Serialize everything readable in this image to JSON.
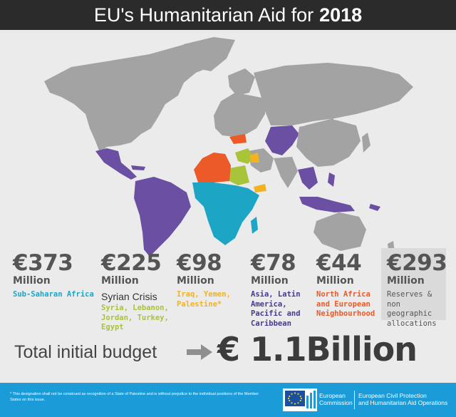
{
  "header": {
    "title_prefix": "EU's Humanitarian Aid for",
    "title_year": "2018"
  },
  "colors": {
    "sub_saharan": "#1da5c6",
    "syria": "#a8c43a",
    "iraq_yemen": "#f2b31f",
    "asia_latam": "#6a4fa2",
    "north_africa": "#ec5a28",
    "land": "#a3a3a3",
    "background": "#ebebeb"
  },
  "regions": [
    {
      "amount": "€373",
      "unit": "Million",
      "label": "Sub-Saharan Africa",
      "color": "#1da5c6"
    },
    {
      "amount": "€225",
      "unit": "Million",
      "crisis": "Syrian Crisis",
      "label": "Syria, Lebanon, Jordan, Turkey, Egypt",
      "color": "#a8c43a"
    },
    {
      "amount": "€98",
      "unit": "Million",
      "label": "Iraq, Yemen, Palestine*",
      "color": "#f2b31f"
    },
    {
      "amount": "€78",
      "unit": "Million",
      "label": "Asia, Latin America, Pacific and Caribbean",
      "color": "#4a3890"
    },
    {
      "amount": "€44",
      "unit": "Million",
      "label": "North Africa and European Neighbourhood",
      "color": "#ec5a28"
    },
    {
      "amount": "€293",
      "unit": "Million",
      "label": "Reserves & non geographic allocations",
      "color": "#555555"
    }
  ],
  "total": {
    "label": "Total initial budget",
    "value": "€ 1.1Billion"
  },
  "footer": {
    "note": "* This designation shall not be construed as recognition of a State of Palestine and is without prejudice to the individual positions of the Member States on this issue.",
    "ec_line1": "European",
    "ec_line2": "Commission",
    "echo_line1": "European Civil Protection",
    "echo_line2": "and Humanitarian Aid Operations"
  }
}
